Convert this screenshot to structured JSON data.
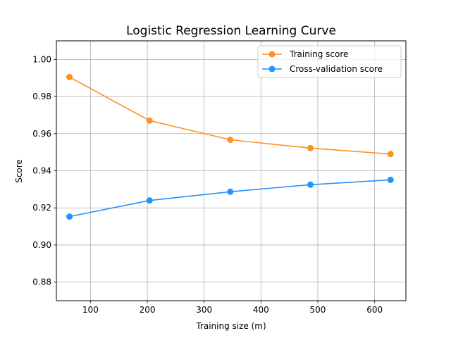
{
  "chart_data": {
    "type": "line",
    "title": "Logistic Regression Learning Curve",
    "xlabel": "Training size (m)",
    "ylabel": "Score",
    "xlim": [
      40,
      655
    ],
    "ylim": [
      0.87,
      1.01
    ],
    "xticks": [
      100,
      200,
      300,
      400,
      500,
      600
    ],
    "xtick_labels": [
      "100",
      "200",
      "300",
      "400",
      "500",
      "600"
    ],
    "yticks": [
      0.88,
      0.9,
      0.92,
      0.94,
      0.96,
      0.98,
      1.0
    ],
    "ytick_labels": [
      "0.88",
      "0.90",
      "0.92",
      "0.94",
      "0.96",
      "0.98",
      "1.00"
    ],
    "grid": true,
    "legend_position": "top-right",
    "x": [
      63,
      204,
      346,
      487,
      628
    ],
    "series": [
      {
        "name": "Training score",
        "color": "#ff9124",
        "marker": "circle",
        "values": [
          0.9905,
          0.967,
          0.9567,
          0.9522,
          0.949
        ]
      },
      {
        "name": "Cross-validation score",
        "color": "#2492ff",
        "marker": "circle",
        "values": [
          0.9153,
          0.924,
          0.9287,
          0.9325,
          0.9351
        ]
      }
    ]
  }
}
